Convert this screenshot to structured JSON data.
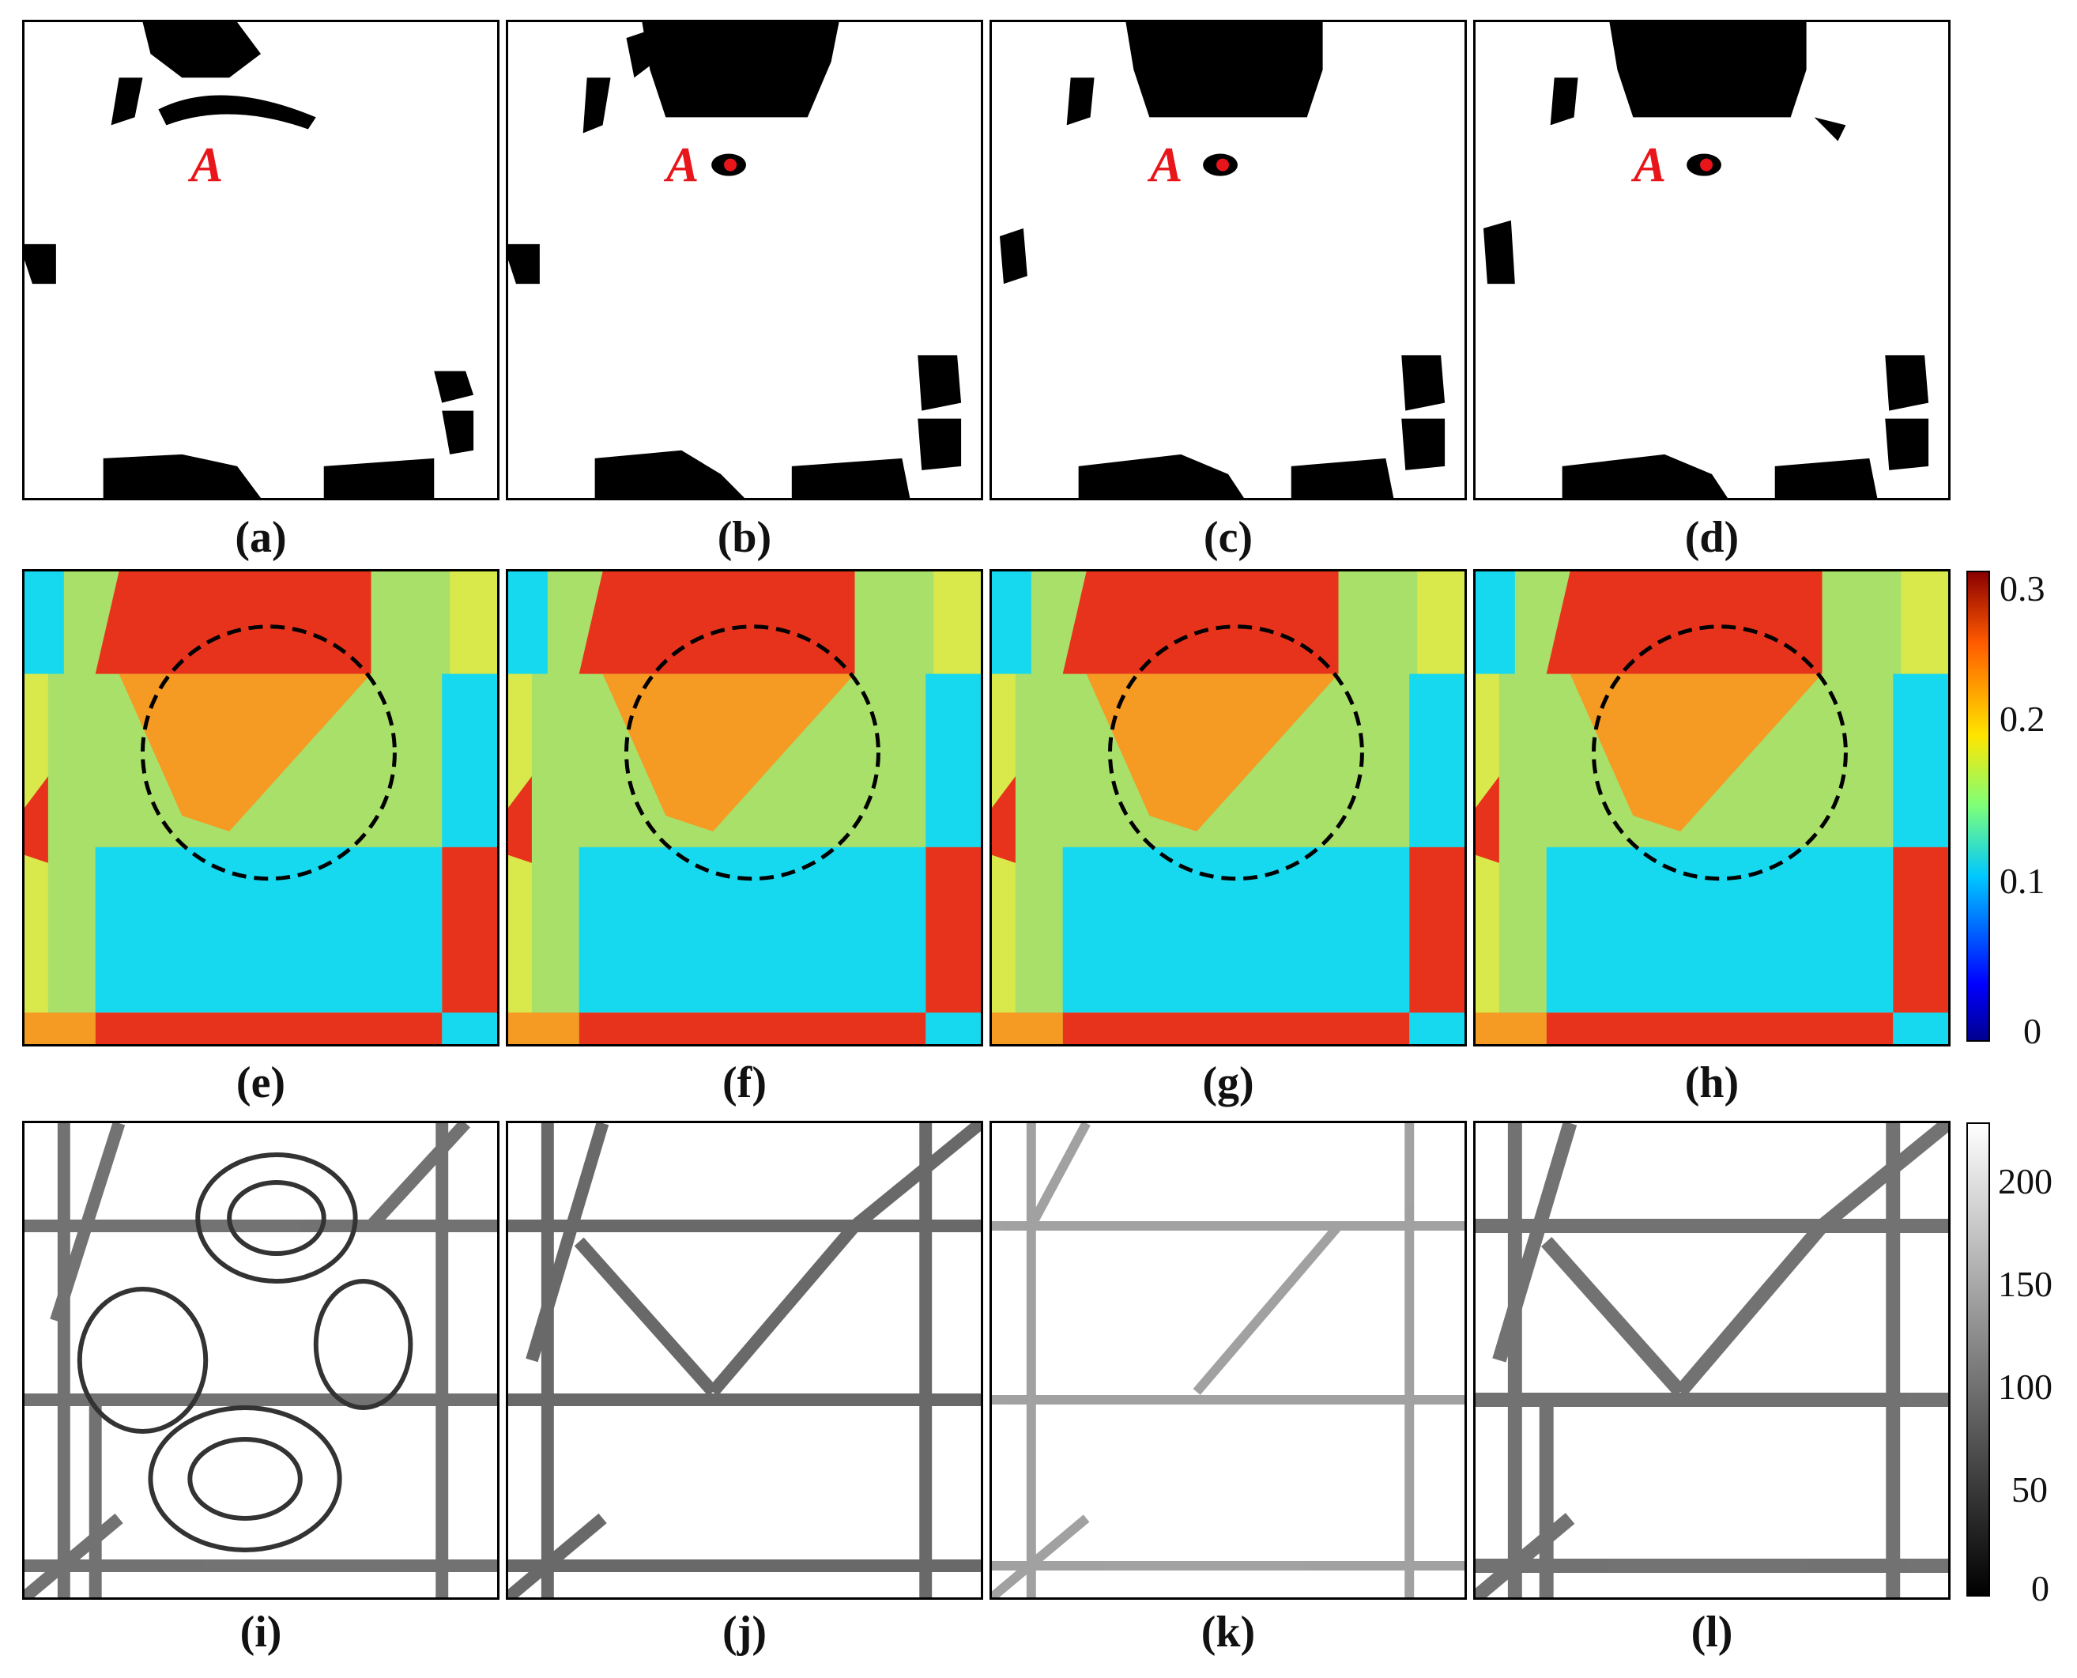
{
  "marker_label": "A",
  "panels": {
    "a": {
      "label": "(a)"
    },
    "b": {
      "label": "(b)"
    },
    "c": {
      "label": "(c)"
    },
    "d": {
      "label": "(d)"
    },
    "e": {
      "label": "(e)"
    },
    "f": {
      "label": "(f)"
    },
    "g": {
      "label": "(g)"
    },
    "h": {
      "label": "(h)"
    },
    "i": {
      "label": "(i)"
    },
    "j": {
      "label": "(j)"
    },
    "k": {
      "label": "(k)"
    },
    "l": {
      "label": "(l)"
    }
  },
  "colorbar_color": {
    "ticks": [
      "0.3",
      "0.2",
      "0.1",
      "0"
    ],
    "range": [
      0,
      0.3
    ]
  },
  "colorbar_gray": {
    "ticks": [
      "200",
      "150",
      "100",
      "50",
      "0"
    ],
    "range": [
      0,
      230
    ]
  },
  "colors": {
    "marker": "#e8151b",
    "red": "#e8331c",
    "orange": "#f59a23",
    "yellow": "#d9e84a",
    "green": "#a8e06a",
    "cyan": "#16d9f0",
    "blue": "#0a2ad9",
    "black": "#000000"
  }
}
